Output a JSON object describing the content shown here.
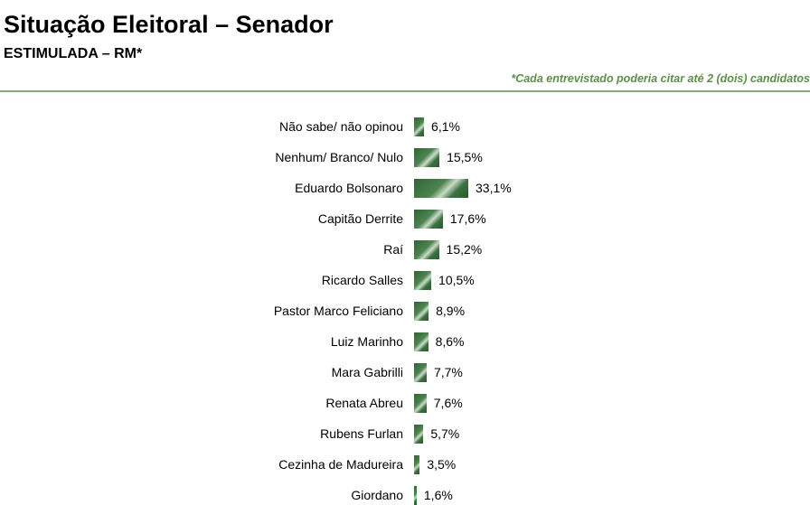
{
  "header": {
    "title": "Situação Eleitoral – Senador",
    "subtitle": "ESTIMULADA – RM*",
    "note": "*Cada entrevistado poderia citar até 2 (dois) candidatos"
  },
  "colors": {
    "bar": "#3d7242",
    "note": "#5d8f49",
    "rule": "#87a87a"
  },
  "chart_data": {
    "type": "bar",
    "orientation": "horizontal",
    "title": "Situação Eleitoral – Senador",
    "subtitle": "ESTIMULADA – RM*",
    "categories": [
      "Não sabe/ não opinou",
      "Nenhum/ Branco/ Nulo",
      "Eduardo Bolsonaro",
      "Capitão Derrite",
      "Raí",
      "Ricardo Salles",
      "Pastor Marco Feliciano",
      "Luiz Marinho",
      "Mara Gabrilli",
      "Renata Abreu",
      "Rubens Furlan",
      "Cezinha de Madureira",
      "Giordano"
    ],
    "values": [
      6.1,
      15.5,
      33.1,
      17.6,
      15.2,
      10.5,
      8.9,
      8.6,
      7.7,
      7.6,
      5.7,
      3.5,
      1.6
    ],
    "value_labels": [
      "6,1%",
      "15,5%",
      "33,1%",
      "17,6%",
      "15,2%",
      "10,5%",
      "8,9%",
      "8,6%",
      "7,7%",
      "7,6%",
      "5,7%",
      "3,5%",
      "1,6%"
    ],
    "unit": "%",
    "grid": false,
    "legend": "none"
  }
}
